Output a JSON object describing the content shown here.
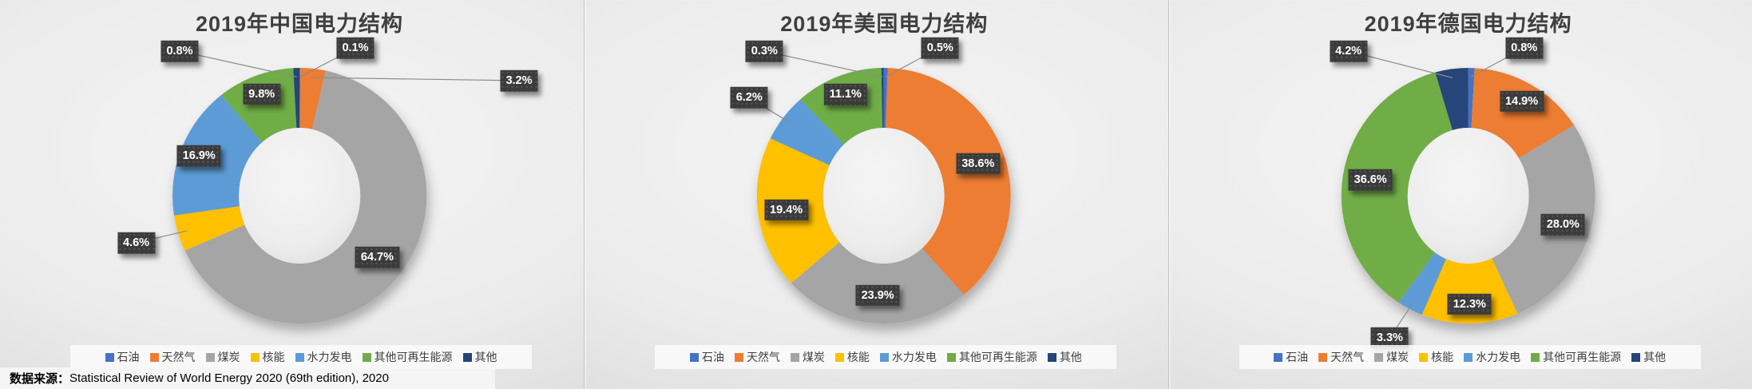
{
  "page": {
    "source_note": {
      "prefix": "数据来源：",
      "text": "Statistical Review of World Energy 2020 (69th edition), 2020"
    }
  },
  "palette": {
    "title_color": "#3F3F3F",
    "label_box_bg": "#3B3B3B",
    "label_text": "#FFFFFF",
    "leader_line": "#8C8C8C",
    "legend_bg": "#FAFAFA",
    "legend_text": "#404040",
    "panel_bg": "#ECECEC"
  },
  "categories": [
    {
      "id": "oil",
      "label": "石油",
      "color": "#4472C4"
    },
    {
      "id": "natural-gas",
      "label": "天然气",
      "color": "#ED7D31"
    },
    {
      "id": "coal",
      "label": "煤炭",
      "color": "#A5A5A5"
    },
    {
      "id": "nuclear",
      "label": "核能",
      "color": "#FFC000"
    },
    {
      "id": "hydro",
      "label": "水力发电",
      "color": "#5B9BD5"
    },
    {
      "id": "other-renewables",
      "label": "其他可再生能源",
      "color": "#70AD47"
    },
    {
      "id": "other",
      "label": "其他",
      "color": "#264478"
    }
  ],
  "chart_data": [
    {
      "type": "donut",
      "title": "2019年中国电力结构",
      "country": "中国",
      "unit": "%",
      "legend_position": "bottom",
      "categories": [
        "石油",
        "天然气",
        "煤炭",
        "核能",
        "水力发电",
        "其他可再生能源",
        "其他"
      ],
      "values": [
        0.1,
        3.2,
        64.7,
        4.6,
        16.9,
        9.8,
        0.8
      ]
    },
    {
      "type": "donut",
      "title": "2019年美国电力结构",
      "country": "美国",
      "unit": "%",
      "legend_position": "bottom",
      "categories": [
        "石油",
        "天然气",
        "煤炭",
        "核能",
        "水力发电",
        "其他可再生能源",
        "其他"
      ],
      "values": [
        0.5,
        38.6,
        23.9,
        19.4,
        6.2,
        11.1,
        0.3
      ]
    },
    {
      "type": "donut",
      "title": "2019年德国电力结构",
      "country": "德国",
      "unit": "%",
      "legend_position": "bottom",
      "categories": [
        "石油",
        "天然气",
        "煤炭",
        "核能",
        "水力发电",
        "其他可再生能源",
        "其他"
      ],
      "values": [
        0.8,
        14.9,
        28.0,
        12.3,
        3.3,
        36.6,
        4.2
      ]
    }
  ]
}
